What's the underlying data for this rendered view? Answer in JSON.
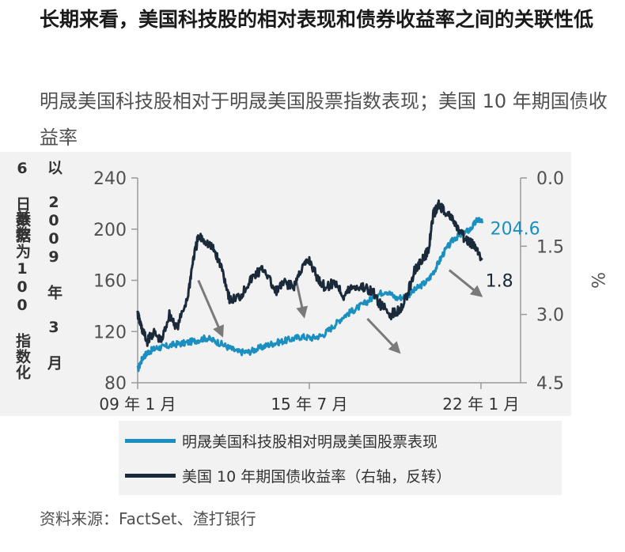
{
  "title": "长期来看，美国科技股的相对表现和债券收益率之间的关联性低",
  "subtitle": "明晟美国科技股相对于明晟美国股票指数表现；美国 10 年期国债收益率",
  "source": "资料来源：FactSet、渣打银行",
  "left_axis_label": [
    "以 2009 年 3 月 6 日数据为",
    "基数 100 指数化"
  ],
  "right_axis_label": "%",
  "chart_data": {
    "type": "line",
    "x_range": [
      2009.0,
      2023.5
    ],
    "xticks": [
      {
        "x": 2009.0,
        "label": "09 年 1 月"
      },
      {
        "x": 2015.5,
        "label": "15 年 7 月"
      },
      {
        "x": 2022.0,
        "label": "22 年 1 月"
      }
    ],
    "left_axis": {
      "ylim": [
        80,
        240
      ],
      "ticks": [
        80,
        120,
        160,
        200,
        240
      ],
      "labels": [
        "80",
        "120",
        "160",
        "200",
        "240"
      ]
    },
    "right_axis": {
      "ylim": [
        4.5,
        0.0
      ],
      "inverted": true,
      "ticks": [
        0.0,
        1.5,
        3.0,
        4.5
      ],
      "labels": [
        "0.0",
        "1.5",
        "3.0",
        "4.5"
      ]
    },
    "series": [
      {
        "name": "明晟美国科技股相对明晟美国股票表现",
        "axis": "left",
        "color": "#1a8fc0",
        "end_label": "204.6",
        "x": [
          2009.0,
          2009.2,
          2009.4,
          2009.7,
          2010.0,
          2010.4,
          2010.8,
          2011.2,
          2011.6,
          2012.0,
          2012.4,
          2012.8,
          2013.2,
          2013.6,
          2014.0,
          2014.4,
          2014.8,
          2015.2,
          2015.6,
          2016.0,
          2016.4,
          2016.8,
          2017.2,
          2017.6,
          2018.0,
          2018.4,
          2018.8,
          2019.2,
          2019.6,
          2020.0,
          2020.3,
          2020.6,
          2021.0,
          2021.3,
          2021.6,
          2021.9,
          2022.05
        ],
        "y": [
          90,
          100,
          104,
          107,
          108,
          110,
          111,
          113,
          115,
          112,
          108,
          104,
          104,
          107,
          110,
          112,
          114,
          116,
          115,
          117,
          124,
          132,
          137,
          142,
          148,
          152,
          146,
          148,
          154,
          160,
          170,
          182,
          193,
          196,
          200,
          208,
          204.6
        ]
      },
      {
        "name": "美国 10 年期国债收益率（右轴，反转）",
        "axis": "right",
        "color": "#1b2a3a",
        "end_label": "1.8",
        "x": [
          2009.0,
          2009.15,
          2009.35,
          2009.6,
          2009.9,
          2010.2,
          2010.5,
          2010.9,
          2011.1,
          2011.3,
          2011.6,
          2011.9,
          2012.2,
          2012.5,
          2012.9,
          2013.2,
          2013.5,
          2013.8,
          2014.2,
          2014.6,
          2014.9,
          2015.2,
          2015.5,
          2015.8,
          2016.1,
          2016.5,
          2016.8,
          2017.1,
          2017.5,
          2017.9,
          2018.2,
          2018.6,
          2018.9,
          2019.2,
          2019.5,
          2019.8,
          2020.0,
          2020.2,
          2020.4,
          2020.6,
          2020.9,
          2021.2,
          2021.5,
          2021.8,
          2022.05
        ],
        "y": [
          3.0,
          3.3,
          3.6,
          3.4,
          3.6,
          3.0,
          3.3,
          2.6,
          1.8,
          1.3,
          1.4,
          1.6,
          2.0,
          2.7,
          2.6,
          2.3,
          2.1,
          2.0,
          2.5,
          2.3,
          2.4,
          2.0,
          1.8,
          2.2,
          2.4,
          2.3,
          2.6,
          2.4,
          2.4,
          2.5,
          2.8,
          3.0,
          2.9,
          2.6,
          2.0,
          1.8,
          1.6,
          0.8,
          0.6,
          0.7,
          0.9,
          1.2,
          1.4,
          1.5,
          1.8
        ]
      }
    ],
    "annotations": [
      {
        "type": "arrow",
        "from": [
          2011.3,
          160
        ],
        "to": [
          2012.2,
          117
        ]
      },
      {
        "type": "arrow",
        "from": [
          2015.0,
          160
        ],
        "to": [
          2015.3,
          132
        ]
      },
      {
        "type": "arrow",
        "from": [
          2017.7,
          130
        ],
        "to": [
          2018.9,
          104
        ]
      },
      {
        "type": "arrow",
        "from": [
          2020.8,
          168
        ],
        "to": [
          2022.0,
          148
        ]
      }
    ]
  }
}
